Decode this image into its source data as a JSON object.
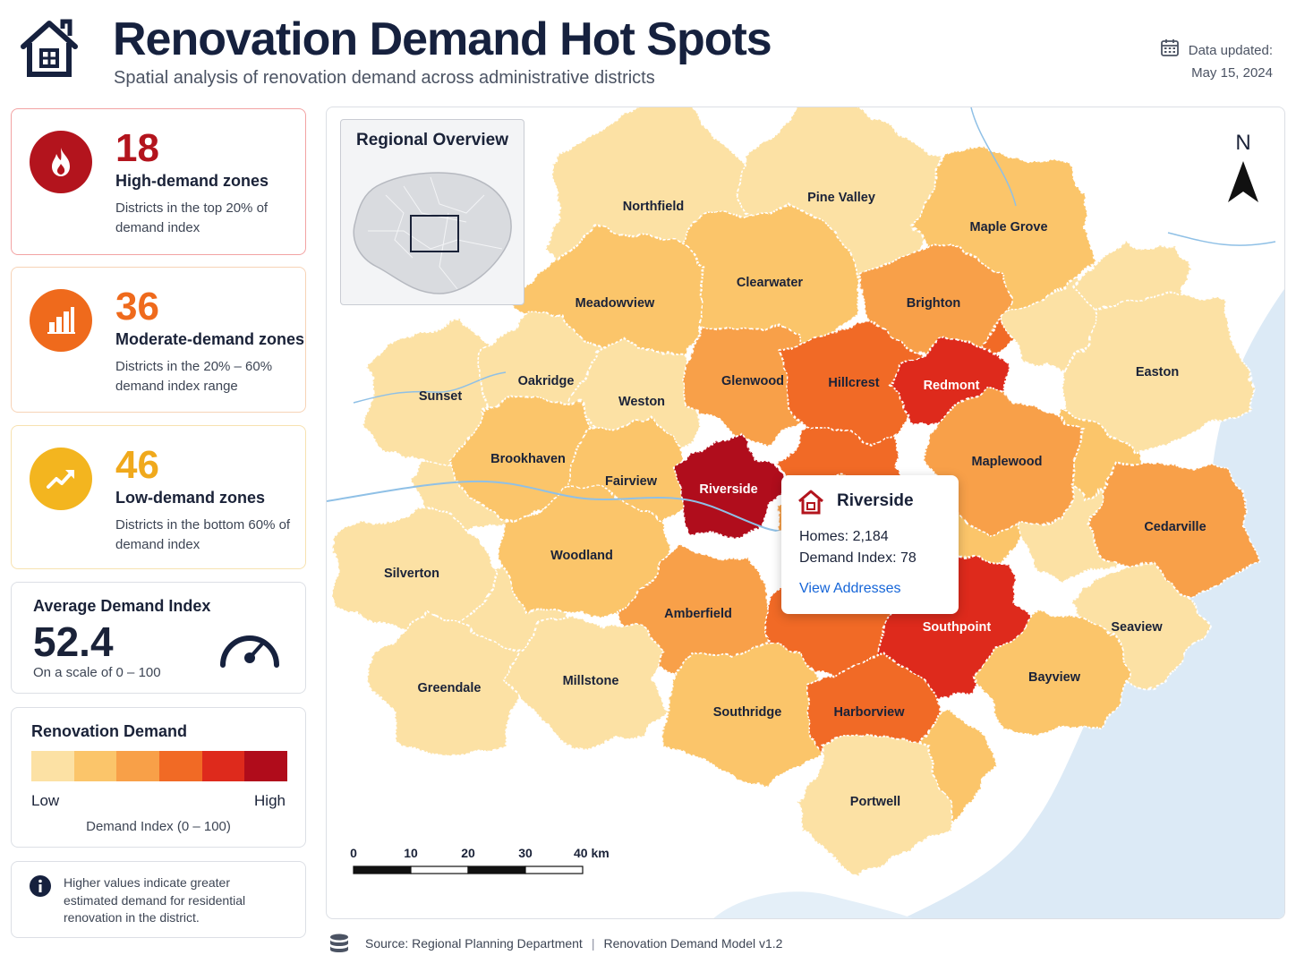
{
  "header": {
    "title": "Renovation Demand Hot Spots",
    "subtitle": "Spatial analysis of renovation demand across administrative districts",
    "updated_label": "Data updated:",
    "updated_date": "May 15, 2024",
    "icon": "house-icon"
  },
  "stats": {
    "high": {
      "value": "18",
      "title": "High-demand zones",
      "desc": "Districts in the top 20% of demand index",
      "color": "#b3141d",
      "icon": "flame-icon"
    },
    "moderate": {
      "value": "36",
      "title": "Moderate-demand zones",
      "desc": "Districts in the 20% – 60% demand index range",
      "color": "#ef6a1c",
      "icon": "bar-chart-icon"
    },
    "low": {
      "value": "46",
      "title": "Low-demand zones",
      "desc": "Districts in the bottom 60% of demand index",
      "color": "#f3b51f",
      "icon": "trend-up-icon"
    }
  },
  "average": {
    "title": "Average Demand Index",
    "value": "52.4",
    "scale": "On a scale of 0 – 100",
    "icon": "gauge-icon"
  },
  "legend": {
    "title": "Renovation Demand",
    "low": "Low",
    "high": "High",
    "caption": "Demand Index (0 – 100)",
    "colors": [
      "#fce1a4",
      "#fbc56a",
      "#f8a048",
      "#f16a25",
      "#de2a1c",
      "#b00c1b"
    ]
  },
  "info": {
    "text": "Higher values indicate greater estimated demand for residential renovation in the district.",
    "icon": "info-icon"
  },
  "map": {
    "overview_title": "Regional Overview",
    "north": "N",
    "scale_labels": [
      "0",
      "10",
      "20",
      "30",
      "40 km"
    ],
    "districts": [
      {
        "name": "Northfield",
        "level": 0
      },
      {
        "name": "Pine Valley",
        "level": 0
      },
      {
        "name": "Maple Grove",
        "level": 1
      },
      {
        "name": "Clearwater",
        "level": 1
      },
      {
        "name": "Brighton",
        "level": 2
      },
      {
        "name": "Meadowview",
        "level": 1
      },
      {
        "name": "Easton",
        "level": 0
      },
      {
        "name": "Sunset",
        "level": 0
      },
      {
        "name": "Oakridge",
        "level": 0
      },
      {
        "name": "Weston",
        "level": 0
      },
      {
        "name": "Glenwood",
        "level": 2
      },
      {
        "name": "Hillcrest",
        "level": 3
      },
      {
        "name": "Redmont",
        "level": 4
      },
      {
        "name": "Brookhaven",
        "level": 1
      },
      {
        "name": "Fairview",
        "level": 1
      },
      {
        "name": "Riverside",
        "level": 5
      },
      {
        "name": "Maplewood",
        "level": 2
      },
      {
        "name": "Cedarville",
        "level": 2
      },
      {
        "name": "Silverton",
        "level": 0
      },
      {
        "name": "Woodland",
        "level": 1
      },
      {
        "name": "Amberfield",
        "level": 2
      },
      {
        "name": "Southpoint",
        "level": 4
      },
      {
        "name": "Seaview",
        "level": 0
      },
      {
        "name": "Greendale",
        "level": 0
      },
      {
        "name": "Millstone",
        "level": 0
      },
      {
        "name": "Southridge",
        "level": 1
      },
      {
        "name": "Harborview",
        "level": 3
      },
      {
        "name": "Bayview",
        "level": 1
      },
      {
        "name": "Portwell",
        "level": 0
      }
    ]
  },
  "tooltip": {
    "title": "Riverside",
    "homes": "Homes: 2,184",
    "index": "Demand Index: 78",
    "link": "View Addresses"
  },
  "footer": {
    "source": "Source: Regional Planning Department",
    "model": "Renovation Demand Model v1.2"
  }
}
